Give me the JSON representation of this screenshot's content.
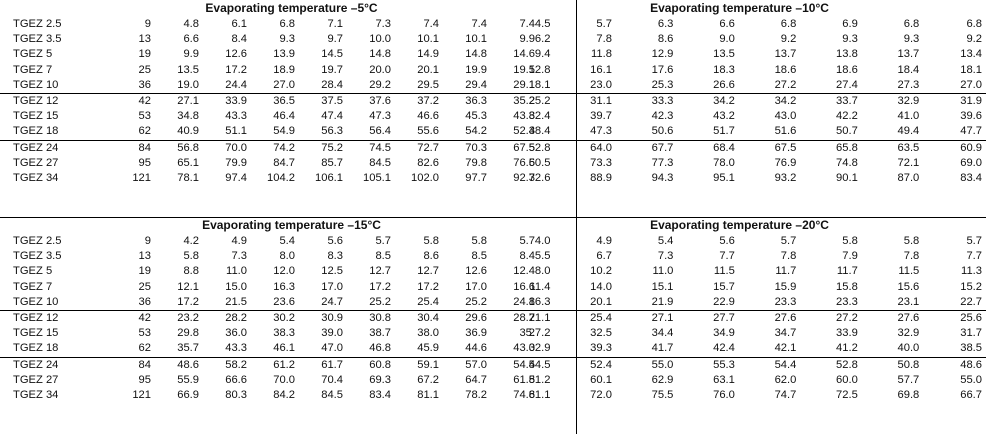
{
  "panels": [
    {
      "title": "Evaporating temperature –5°C",
      "groups": [
        [
          {
            "model": "TGEZ 2.5",
            "capacity": "9",
            "values": [
              "4.8",
              "6.1",
              "6.8",
              "7.1",
              "7.3",
              "7.4",
              "7.4",
              "7.4"
            ]
          },
          {
            "model": "TGEZ 3.5",
            "capacity": "13",
            "values": [
              "6.6",
              "8.4",
              "9.3",
              "9.7",
              "10.0",
              "10.1",
              "10.1",
              "9.9"
            ]
          },
          {
            "model": "TGEZ 5",
            "capacity": "19",
            "values": [
              "9.9",
              "12.6",
              "13.9",
              "14.5",
              "14.8",
              "14.9",
              "14.8",
              "14.6"
            ]
          },
          {
            "model": "TGEZ 7",
            "capacity": "25",
            "values": [
              "13.5",
              "17.2",
              "18.9",
              "19.7",
              "20.0",
              "20.1",
              "19.9",
              "19.5"
            ]
          },
          {
            "model": "TGEZ 10",
            "capacity": "36",
            "values": [
              "19.0",
              "24.4",
              "27.0",
              "28.4",
              "29.2",
              "29.5",
              "29.4",
              "29.1"
            ]
          }
        ],
        [
          {
            "model": "TGEZ 12",
            "capacity": "42",
            "values": [
              "27.1",
              "33.9",
              "36.5",
              "37.5",
              "37.6",
              "37.2",
              "36.3",
              "35.2"
            ]
          },
          {
            "model": "TGEZ 15",
            "capacity": "53",
            "values": [
              "34.8",
              "43.3",
              "46.4",
              "47.4",
              "47.3",
              "46.6",
              "45.3",
              "43.8"
            ]
          },
          {
            "model": "TGEZ 18",
            "capacity": "62",
            "values": [
              "40.9",
              "51.1",
              "54.9",
              "56.3",
              "56.4",
              "55.6",
              "54.2",
              "52.4"
            ]
          }
        ],
        [
          {
            "model": "TGEZ 24",
            "capacity": "84",
            "values": [
              "56.8",
              "70.0",
              "74.2",
              "75.2",
              "74.5",
              "72.7",
              "70.3",
              "67.5"
            ]
          },
          {
            "model": "TGEZ 27",
            "capacity": "95",
            "values": [
              "65.1",
              "79.9",
              "84.7",
              "85.7",
              "84.5",
              "82.6",
              "79.8",
              "76.5"
            ]
          },
          {
            "model": "TGEZ 34",
            "capacity": "121",
            "values": [
              "78.1",
              "97.4",
              "104.2",
              "106.1",
              "105.1",
              "102.0",
              "97.7",
              "92.3"
            ]
          }
        ]
      ]
    },
    {
      "title": "Evaporating temperature –10°C",
      "groups": [
        [
          {
            "values": [
              "4.5",
              "5.7",
              "6.3",
              "6.6",
              "6.8",
              "6.9",
              "6.8",
              "6.8"
            ]
          },
          {
            "values": [
              "6.2",
              "7.8",
              "8.6",
              "9.0",
              "9.2",
              "9.3",
              "9.3",
              "9.2"
            ]
          },
          {
            "values": [
              "9.4",
              "11.8",
              "12.9",
              "13.5",
              "13.7",
              "13.8",
              "13.7",
              "13.4"
            ]
          },
          {
            "values": [
              "12.8",
              "16.1",
              "17.6",
              "18.3",
              "18.6",
              "18.6",
              "18.4",
              "18.1"
            ]
          },
          {
            "values": [
              "18.1",
              "23.0",
              "25.3",
              "26.6",
              "27.2",
              "27.4",
              "27.3",
              "27.0"
            ]
          }
        ],
        [
          {
            "values": [
              "25.2",
              "31.1",
              "33.3",
              "34.2",
              "34.2",
              "33.7",
              "32.9",
              "31.9"
            ]
          },
          {
            "values": [
              "32.4",
              "39.7",
              "42.3",
              "43.2",
              "43.0",
              "42.2",
              "41.0",
              "39.6"
            ]
          },
          {
            "values": [
              "38.4",
              "47.3",
              "50.6",
              "51.7",
              "51.6",
              "50.7",
              "49.4",
              "47.7"
            ]
          }
        ],
        [
          {
            "values": [
              "52.8",
              "64.0",
              "67.7",
              "68.4",
              "67.5",
              "65.8",
              "63.5",
              "60.9"
            ]
          },
          {
            "values": [
              "60.5",
              "73.3",
              "77.3",
              "78.0",
              "76.9",
              "74.8",
              "72.1",
              "69.0"
            ]
          },
          {
            "values": [
              "72.6",
              "88.9",
              "94.3",
              "95.1",
              "93.2",
              "90.1",
              "87.0",
              "83.4"
            ]
          }
        ]
      ]
    },
    {
      "title": "Evaporating temperature –15°C",
      "groups": [
        [
          {
            "model": "TGEZ 2.5",
            "capacity": "9",
            "values": [
              "4.2",
              "4.9",
              "5.4",
              "5.6",
              "5.7",
              "5.8",
              "5.8",
              "5.7"
            ]
          },
          {
            "model": "TGEZ 3.5",
            "capacity": "13",
            "values": [
              "5.8",
              "7.3",
              "8.0",
              "8.3",
              "8.5",
              "8.6",
              "8.5",
              "8.4"
            ]
          },
          {
            "model": "TGEZ 5",
            "capacity": "19",
            "values": [
              "8.8",
              "11.0",
              "12.0",
              "12.5",
              "12.7",
              "12.7",
              "12.6",
              "12.4"
            ]
          },
          {
            "model": "TGEZ 7",
            "capacity": "25",
            "values": [
              "12.1",
              "15.0",
              "16.3",
              "17.0",
              "17.2",
              "17.2",
              "17.0",
              "16.6"
            ]
          },
          {
            "model": "TGEZ 10",
            "capacity": "36",
            "values": [
              "17.2",
              "21.5",
              "23.6",
              "24.7",
              "25.2",
              "25.4",
              "25.2",
              "24.8"
            ]
          }
        ],
        [
          {
            "model": "TGEZ 12",
            "capacity": "42",
            "values": [
              "23.2",
              "28.2",
              "30.2",
              "30.9",
              "30.8",
              "30.4",
              "29.6",
              "28.7"
            ]
          },
          {
            "model": "TGEZ 15",
            "capacity": "53",
            "values": [
              "29.8",
              "36.0",
              "38.3",
              "39.0",
              "38.7",
              "38.0",
              "36.9",
              "35."
            ]
          },
          {
            "model": "TGEZ 18",
            "capacity": "62",
            "values": [
              "35.7",
              "43.3",
              "46.1",
              "47.0",
              "46.8",
              "45.9",
              "44.6",
              "43.0"
            ]
          }
        ],
        [
          {
            "model": "TGEZ 24",
            "capacity": "84",
            "values": [
              "48.6",
              "58.2",
              "61.2",
              "61.7",
              "60.8",
              "59.1",
              "57.0",
              "54.5"
            ]
          },
          {
            "model": "TGEZ 27",
            "capacity": "95",
            "values": [
              "55.9",
              "66.6",
              "70.0",
              "70.4",
              "69.3",
              "67.2",
              "64.7",
              "61.8"
            ]
          },
          {
            "model": "TGEZ 34",
            "capacity": "121",
            "values": [
              "66.9",
              "80.3",
              "84.2",
              "84.5",
              "83.4",
              "81.1",
              "78.2",
              "74.8"
            ]
          }
        ]
      ]
    },
    {
      "title": "Evaporating temperature –20°C",
      "groups": [
        [
          {
            "values": [
              "4.0",
              "4.9",
              "5.4",
              "5.6",
              "5.7",
              "5.8",
              "5.8",
              "5.7"
            ]
          },
          {
            "values": [
              "5.5",
              "6.7",
              "7.3",
              "7.7",
              "7.8",
              "7.9",
              "7.8",
              "7.7"
            ]
          },
          {
            "values": [
              "8.0",
              "10.2",
              "11.0",
              "11.5",
              "11.7",
              "11.7",
              "11.5",
              "11.3"
            ]
          },
          {
            "values": [
              "11.4",
              "14.0",
              "15.1",
              "15.7",
              "15.9",
              "15.8",
              "15.6",
              "15.2"
            ]
          },
          {
            "values": [
              "16.3",
              "20.1",
              "21.9",
              "22.9",
              "23.3",
              "23.3",
              "23.1",
              "22.7"
            ]
          }
        ],
        [
          {
            "values": [
              "21.1",
              "25.4",
              "27.1",
              "27.7",
              "27.6",
              "27.2",
              "27.6",
              "25.6"
            ]
          },
          {
            "values": [
              "27.2",
              "32.5",
              "34.4",
              "34.9",
              "34.7",
              "33.9",
              "32.9",
              "31.7"
            ]
          },
          {
            "values": [
              "32.9",
              "39.3",
              "41.7",
              "42.4",
              "42.1",
              "41.2",
              "40.0",
              "38.5"
            ]
          }
        ],
        [
          {
            "values": [
              "44.5",
              "52.4",
              "55.0",
              "55.3",
              "54.4",
              "52.8",
              "50.8",
              "48.6"
            ]
          },
          {
            "values": [
              "51.2",
              "60.1",
              "62.9",
              "63.1",
              "62.0",
              "60.0",
              "57.7",
              "55.0"
            ]
          },
          {
            "values": [
              "61.1",
              "72.0",
              "75.5",
              "76.0",
              "74.7",
              "72.5",
              "69.8",
              "66.7"
            ]
          }
        ]
      ]
    }
  ]
}
